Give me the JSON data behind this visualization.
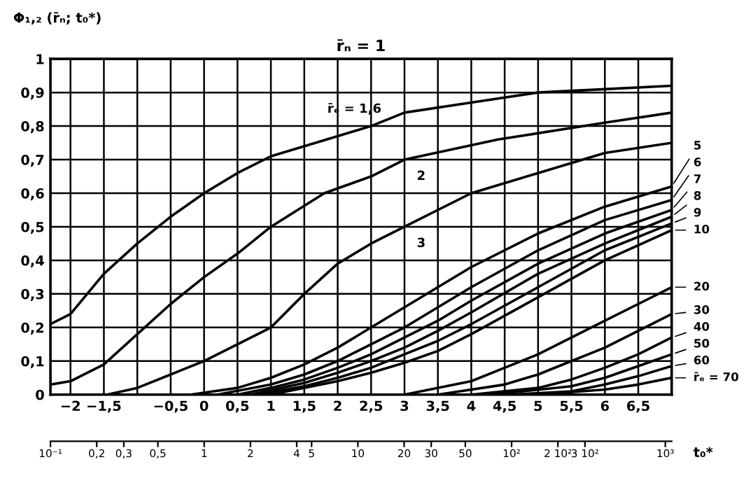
{
  "chart_data": {
    "type": "line",
    "title": "r̄ₙ = 1",
    "ylabel": "Φ₁,₂ (r̄ₙ; t₀*)",
    "x2label": "t₀*",
    "xlim": [
      -2.3,
      7
    ],
    "ylim": [
      0,
      1
    ],
    "xticks": [
      {
        "value": -2,
        "label": "−2"
      },
      {
        "value": -1.5,
        "label": "−1,5"
      },
      {
        "value": -1,
        "label": null
      },
      {
        "value": -0.5,
        "label": "−0,5"
      },
      {
        "value": 0,
        "label": "0"
      },
      {
        "value": 0.5,
        "label": "0,5"
      },
      {
        "value": 1,
        "label": "1"
      },
      {
        "value": 1.5,
        "label": "1,5"
      },
      {
        "value": 2,
        "label": "2"
      },
      {
        "value": 2.5,
        "label": "2,5"
      },
      {
        "value": 3,
        "label": "3"
      },
      {
        "value": 3.5,
        "label": "3,5"
      },
      {
        "value": 4,
        "label": "4"
      },
      {
        "value": 4.5,
        "label": "4,5"
      },
      {
        "value": 5,
        "label": "5"
      },
      {
        "value": 5.5,
        "label": "5,5"
      },
      {
        "value": 6,
        "label": "6"
      },
      {
        "value": 6.5,
        "label": "6,5"
      }
    ],
    "yticks": [
      0,
      {
        "value": 0.1,
        "label": "0,1"
      },
      {
        "value": 0.2,
        "label": "0,2"
      },
      {
        "value": 0.3,
        "label": "0,3"
      },
      {
        "value": 0.4,
        "label": "0,4"
      },
      {
        "value": 0.5,
        "label": "0,5"
      },
      {
        "value": 0.6,
        "label": "0,6"
      },
      {
        "value": 0.7,
        "label": "0,7"
      },
      {
        "value": 0.8,
        "label": "0,8"
      },
      {
        "value": 0.9,
        "label": "0,9"
      },
      1
    ],
    "x2lim": [
      0.1,
      1100
    ],
    "log": "x2",
    "x2ticks": [
      {
        "value": 0.1,
        "label": "10⁻¹"
      },
      {
        "value": 0.2,
        "label": "0,2"
      },
      {
        "value": 0.3,
        "label": "0,3"
      },
      {
        "value": 0.5,
        "label": "0,5"
      },
      1,
      2,
      4,
      5,
      10,
      20,
      30,
      50,
      {
        "value": 100,
        "label": "10²"
      },
      {
        "value": 200,
        "label": "2 10²"
      },
      {
        "value": 300,
        "label": "3 10²"
      },
      {
        "value": 1000,
        "label": "10³"
      }
    ],
    "grid": true,
    "marker": "none",
    "line_style": "solid",
    "legend": "right",
    "series": [
      {
        "name": "r̄ₑ = 1,6",
        "color": "#000000",
        "x": [
          -2.3,
          -2,
          -1.5,
          -1,
          -0.5,
          0,
          0.5,
          1,
          2,
          2.5,
          3,
          4,
          5,
          6,
          7
        ],
        "values": [
          0.21,
          0.24,
          0.36,
          0.45,
          0.53,
          0.6,
          0.66,
          0.71,
          0.77,
          0.8,
          0.84,
          0.87,
          0.9,
          0.91,
          0.92
        ]
      },
      {
        "name": "2",
        "color": "#000000",
        "x": [
          -2.3,
          -2,
          -1.5,
          -1,
          -0.5,
          0,
          0.5,
          1,
          1.8,
          2.5,
          3,
          4.4,
          6,
          7
        ],
        "values": [
          0.03,
          0.04,
          0.09,
          0.18,
          0.27,
          0.35,
          0.42,
          0.5,
          0.6,
          0.65,
          0.7,
          0.76,
          0.81,
          0.84
        ]
      },
      {
        "name": "3",
        "color": "#000000",
        "x": [
          -1.45,
          -1,
          -0.5,
          0,
          0.5,
          1,
          1.5,
          2,
          2.5,
          3,
          4,
          5,
          6,
          7
        ],
        "values": [
          0,
          0.02,
          0.06,
          0.1,
          0.15,
          0.2,
          0.3,
          0.39,
          0.45,
          0.5,
          0.6,
          0.66,
          0.72,
          0.75
        ]
      },
      {
        "name": "5",
        "color": "#000000",
        "x": [
          -0.2,
          0.5,
          1,
          1.5,
          2,
          2.5,
          3,
          3.5,
          4,
          5,
          6,
          7
        ],
        "values": [
          0,
          0.02,
          0.05,
          0.09,
          0.14,
          0.2,
          0.26,
          0.32,
          0.38,
          0.48,
          0.56,
          0.62
        ]
      },
      {
        "name": "6",
        "color": "#000000",
        "x": [
          0.2,
          1,
          1.5,
          2,
          2.5,
          3,
          3.5,
          4,
          5,
          6,
          7
        ],
        "values": [
          0,
          0.03,
          0.06,
          0.1,
          0.15,
          0.2,
          0.26,
          0.32,
          0.43,
          0.52,
          0.58
        ]
      },
      {
        "name": "7",
        "color": "#000000",
        "x": [
          0.5,
          1,
          1.5,
          2,
          2.5,
          3,
          3.5,
          4,
          5,
          6,
          7
        ],
        "values": [
          0,
          0.02,
          0.045,
          0.08,
          0.12,
          0.17,
          0.22,
          0.28,
          0.39,
          0.48,
          0.55
        ]
      },
      {
        "name": "8",
        "color": "#000000",
        "x": [
          0.7,
          1.5,
          2,
          2.5,
          3,
          3.5,
          4,
          5,
          6,
          7
        ],
        "values": [
          0,
          0.035,
          0.065,
          0.1,
          0.14,
          0.19,
          0.245,
          0.36,
          0.45,
          0.53
        ]
      },
      {
        "name": "9",
        "color": "#000000",
        "x": [
          0.8,
          1.5,
          2,
          2.5,
          3,
          3.5,
          4,
          5,
          6,
          7
        ],
        "values": [
          0,
          0.025,
          0.05,
          0.08,
          0.12,
          0.16,
          0.21,
          0.32,
          0.43,
          0.51
        ]
      },
      {
        "name": "10",
        "color": "#000000",
        "x": [
          1,
          2,
          2.5,
          3,
          3.5,
          4,
          5,
          6,
          7
        ],
        "values": [
          0,
          0.04,
          0.065,
          0.095,
          0.13,
          0.18,
          0.29,
          0.4,
          0.49
        ]
      },
      {
        "name": "20",
        "color": "#000000",
        "x": [
          3,
          4,
          4.5,
          5,
          5.5,
          6,
          6.5,
          7
        ],
        "values": [
          0,
          0.04,
          0.08,
          0.12,
          0.17,
          0.22,
          0.27,
          0.32
        ]
      },
      {
        "name": "30",
        "color": "#000000",
        "x": [
          3.5,
          4.5,
          5,
          5.5,
          6,
          6.5,
          7
        ],
        "values": [
          0,
          0.03,
          0.06,
          0.1,
          0.14,
          0.19,
          0.24
        ]
      },
      {
        "name": "40",
        "color": "#000000",
        "x": [
          4,
          5,
          5.5,
          6,
          6.5,
          7
        ],
        "values": [
          0,
          0.02,
          0.045,
          0.08,
          0.12,
          0.17
        ]
      },
      {
        "name": "50",
        "color": "#000000",
        "x": [
          4.3,
          5.5,
          6,
          6.5,
          7
        ],
        "values": [
          0,
          0.025,
          0.05,
          0.085,
          0.12
        ]
      },
      {
        "name": "60",
        "color": "#000000",
        "x": [
          4.6,
          5.5,
          6,
          6.5,
          7
        ],
        "values": [
          0,
          0.01,
          0.03,
          0.055,
          0.085
        ]
      },
      {
        "name": "r̄ₑ = 70",
        "color": "#000000",
        "x": [
          5,
          6,
          6.5,
          7
        ],
        "values": [
          0,
          0.015,
          0.03,
          0.05
        ]
      }
    ]
  }
}
